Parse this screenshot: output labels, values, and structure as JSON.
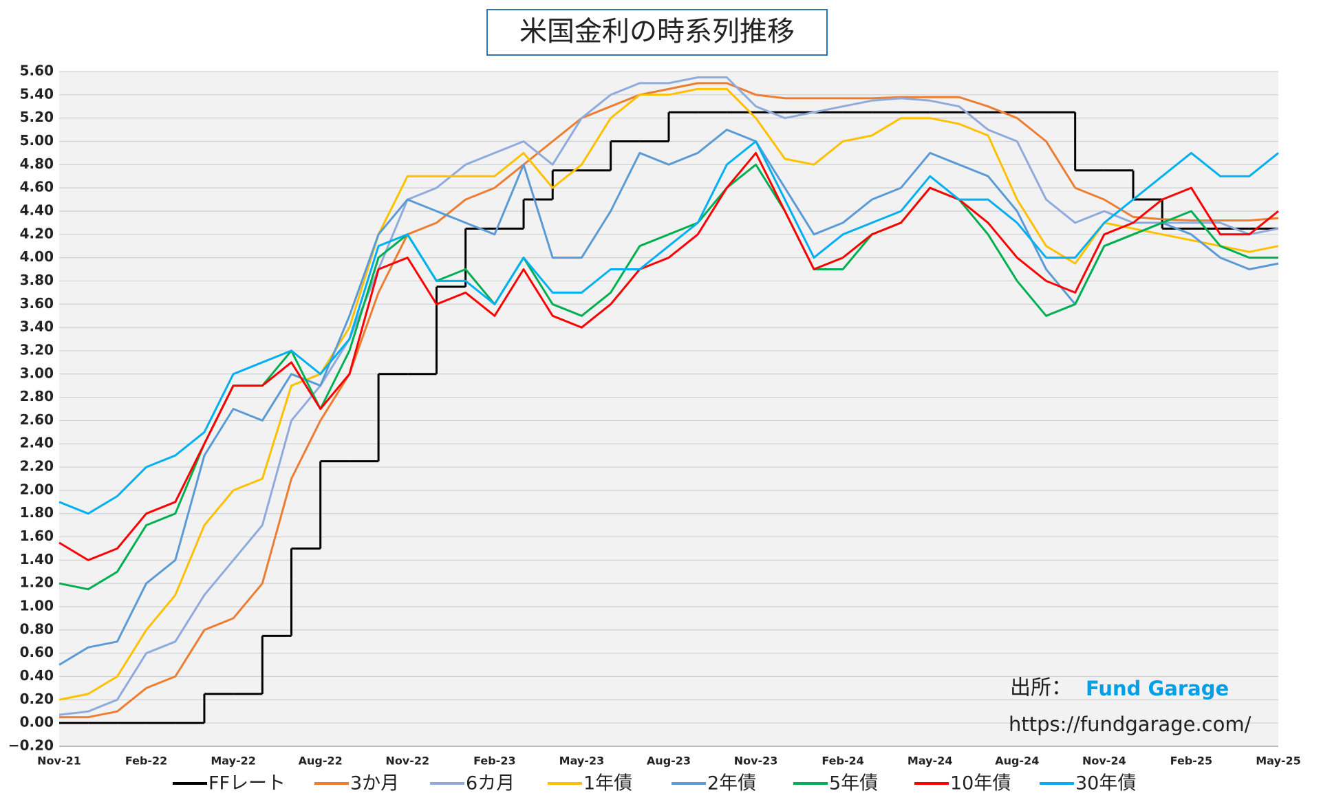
{
  "chart_data": {
    "type": "line",
    "title": "米国金利の時系列推移",
    "categories": [
      "Nov-21",
      null,
      null,
      "Feb-22",
      null,
      null,
      "May-22",
      null,
      null,
      "Aug-22",
      null,
      null,
      "Nov-22",
      null,
      null,
      "Feb-23",
      null,
      null,
      "May-23",
      null,
      null,
      "Aug-23",
      null,
      null,
      "Nov-23",
      null,
      null,
      "Feb-24",
      null,
      null,
      "May-24",
      null,
      null,
      "Aug-24",
      null,
      null,
      "Nov-24",
      null,
      null,
      "Feb-25",
      null,
      null,
      "May-25"
    ],
    "ylim": [
      -0.2,
      5.6
    ],
    "yticks": [
      {
        "value": -0.2,
        "label": "−0.20"
      },
      {
        "value": 0,
        "label": "0.00"
      },
      {
        "value": 0.2,
        "label": "0.20"
      },
      {
        "value": 0.4,
        "label": "0.40"
      },
      {
        "value": 0.6,
        "label": "0.60"
      },
      {
        "value": 0.8,
        "label": "0.80"
      },
      {
        "value": 1,
        "label": "1.00"
      },
      {
        "value": 1.2,
        "label": "1.20"
      },
      {
        "value": 1.4,
        "label": "1.40"
      },
      {
        "value": 1.6,
        "label": "1.60"
      },
      {
        "value": 1.8,
        "label": "1.80"
      },
      {
        "value": 2,
        "label": "2.00"
      },
      {
        "value": 2.2,
        "label": "2.20"
      },
      {
        "value": 2.4,
        "label": "2.40"
      },
      {
        "value": 2.6,
        "label": "2.60"
      },
      {
        "value": 2.8,
        "label": "2.80"
      },
      {
        "value": 3,
        "label": "3.00"
      },
      {
        "value": 3.2,
        "label": "3.20"
      },
      {
        "value": 3.4,
        "label": "3.40"
      },
      {
        "value": 3.6,
        "label": "3.60"
      },
      {
        "value": 3.8,
        "label": "3.80"
      },
      {
        "value": 4,
        "label": "4.00"
      },
      {
        "value": 4.2,
        "label": "4.20"
      },
      {
        "value": 4.4,
        "label": "4.40"
      },
      {
        "value": 4.6,
        "label": "4.60"
      },
      {
        "value": 4.8,
        "label": "4.80"
      },
      {
        "value": 5,
        "label": "5.00"
      },
      {
        "value": 5.2,
        "label": "5.20"
      },
      {
        "value": 5.4,
        "label": "5.40"
      },
      {
        "value": 5.6,
        "label": "5.60"
      }
    ],
    "grid": true,
    "legend": "bottom",
    "series": [
      {
        "name": "FFレート",
        "color": "#000000",
        "drawstyle": "steps",
        "values": [
          0,
          0,
          0,
          0,
          0,
          0.25,
          0.25,
          0.75,
          1.5,
          2.25,
          2.25,
          3,
          3,
          3.75,
          4.25,
          4.25,
          4.5,
          4.75,
          4.75,
          5,
          5,
          5.25,
          5.25,
          5.25,
          5.25,
          5.25,
          5.25,
          5.25,
          5.25,
          5.25,
          5.25,
          5.25,
          5.25,
          5.25,
          5.25,
          4.75,
          4.75,
          4.5,
          4.25,
          4.25,
          4.25,
          4.25,
          4.25
        ]
      },
      {
        "name": "3か月",
        "color": "#ed7d31",
        "values": [
          0.05,
          0.05,
          0.1,
          0.3,
          0.4,
          0.8,
          0.9,
          1.2,
          2.1,
          2.6,
          3,
          3.7,
          4.2,
          4.3,
          4.5,
          4.6,
          4.8,
          5,
          5.2,
          5.3,
          5.4,
          5.45,
          5.5,
          5.5,
          5.4,
          5.37,
          5.37,
          5.37,
          5.37,
          5.38,
          5.38,
          5.38,
          5.3,
          5.2,
          5,
          4.6,
          4.5,
          4.35,
          4.33,
          4.32,
          4.32,
          4.32,
          4.34
        ]
      },
      {
        "name": "6カ月",
        "color": "#8faadc",
        "values": [
          0.07,
          0.1,
          0.2,
          0.6,
          0.7,
          1.1,
          1.4,
          1.7,
          2.6,
          2.9,
          3.3,
          3.9,
          4.5,
          4.6,
          4.8,
          4.9,
          5,
          4.8,
          5.2,
          5.4,
          5.5,
          5.5,
          5.55,
          5.55,
          5.3,
          5.2,
          5.25,
          5.3,
          5.35,
          5.37,
          5.35,
          5.3,
          5.1,
          5,
          4.5,
          4.3,
          4.4,
          4.3,
          4.3,
          4.3,
          4.3,
          4.2,
          4.25
        ]
      },
      {
        "name": "1年債",
        "color": "#ffc000",
        "values": [
          0.2,
          0.25,
          0.4,
          0.8,
          1.1,
          1.7,
          2,
          2.1,
          2.9,
          3,
          3.4,
          4.2,
          4.7,
          4.7,
          4.7,
          4.7,
          4.9,
          4.6,
          4.8,
          5.2,
          5.4,
          5.4,
          5.45,
          5.45,
          5.2,
          4.85,
          4.8,
          5,
          5.05,
          5.2,
          5.2,
          5.15,
          5.05,
          4.5,
          4.1,
          3.95,
          4.3,
          4.25,
          4.2,
          4.15,
          4.1,
          4.05,
          4.1
        ]
      },
      {
        "name": "2年債",
        "color": "#5b9bd5",
        "values": [
          0.5,
          0.65,
          0.7,
          1.2,
          1.4,
          2.3,
          2.7,
          2.6,
          3,
          2.9,
          3.5,
          4.2,
          4.5,
          4.4,
          4.3,
          4.2,
          4.8,
          4,
          4,
          4.4,
          4.9,
          4.8,
          4.9,
          5.1,
          5,
          4.6,
          4.2,
          4.3,
          4.5,
          4.6,
          4.9,
          4.8,
          4.7,
          4.4,
          3.9,
          3.6,
          4.1,
          4.2,
          4.3,
          4.2,
          4,
          3.9,
          3.95
        ]
      },
      {
        "name": "5年債",
        "color": "#00b050",
        "values": [
          1.2,
          1.15,
          1.3,
          1.7,
          1.8,
          2.4,
          2.9,
          2.9,
          3.2,
          2.7,
          3.2,
          4,
          4.2,
          3.8,
          3.9,
          3.6,
          4,
          3.6,
          3.5,
          3.7,
          4.1,
          4.2,
          4.3,
          4.6,
          4.8,
          4.4,
          3.9,
          3.9,
          4.2,
          4.3,
          4.6,
          4.5,
          4.2,
          3.8,
          3.5,
          3.6,
          4.1,
          4.2,
          4.3,
          4.4,
          4.1,
          4,
          4
        ]
      },
      {
        "name": "10年債",
        "color": "#ff0000",
        "values": [
          1.55,
          1.4,
          1.5,
          1.8,
          1.9,
          2.4,
          2.9,
          2.9,
          3.1,
          2.7,
          3,
          3.9,
          4,
          3.6,
          3.7,
          3.5,
          3.9,
          3.5,
          3.4,
          3.6,
          3.9,
          4,
          4.2,
          4.6,
          4.9,
          4.4,
          3.9,
          4,
          4.2,
          4.3,
          4.6,
          4.5,
          4.3,
          4,
          3.8,
          3.7,
          4.2,
          4.3,
          4.5,
          4.6,
          4.2,
          4.2,
          4.4
        ]
      },
      {
        "name": "30年債",
        "color": "#00b0f0",
        "values": [
          1.9,
          1.8,
          1.95,
          2.2,
          2.3,
          2.5,
          3,
          3.1,
          3.2,
          3,
          3.3,
          4.1,
          4.2,
          3.8,
          3.8,
          3.6,
          4,
          3.7,
          3.7,
          3.9,
          3.9,
          4.1,
          4.3,
          4.8,
          5,
          4.5,
          4,
          4.2,
          4.3,
          4.4,
          4.7,
          4.5,
          4.5,
          4.3,
          4,
          4,
          4.3,
          4.5,
          4.7,
          4.9,
          4.7,
          4.7,
          4.9
        ]
      }
    ],
    "source_label": "出所：",
    "source_name": "Fund Garage",
    "url": "https://fundgarage.com/"
  }
}
